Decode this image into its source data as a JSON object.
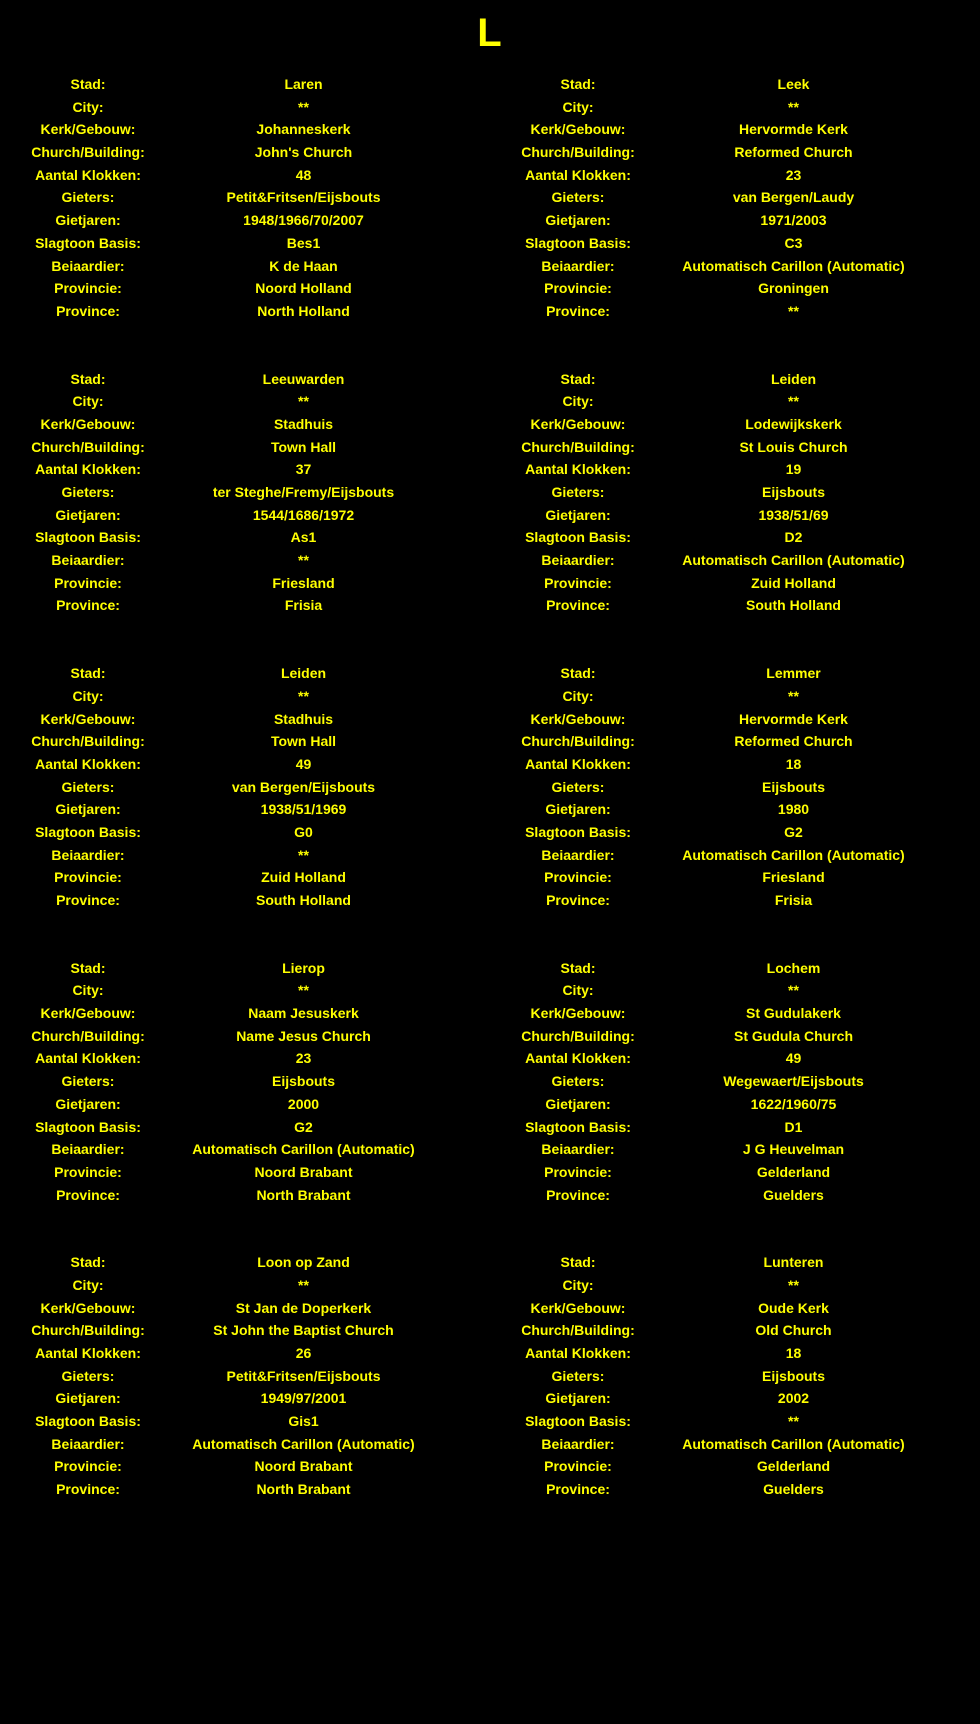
{
  "page": {
    "title": "L",
    "background_color": "#000000",
    "text_color": "#ffff00"
  },
  "field_labels": {
    "stad": "Stad:",
    "city": "City:",
    "kerk_gebouw": "Kerk/Gebouw:",
    "church_building": "Church/Building:",
    "aantal_klokken": "Aantal Klokken:",
    "gieters": "Gieters:",
    "gietjaren": "Gietjaren:",
    "slagtoon_basis": "Slagtoon Basis:",
    "beiaardier": "Beiaardier:",
    "provincie": "Provincie:",
    "province": "Province:"
  },
  "field_order": [
    "stad",
    "city",
    "kerk_gebouw",
    "church_building",
    "aantal_klokken",
    "gieters",
    "gietjaren",
    "slagtoon_basis",
    "beiaardier",
    "provincie",
    "province"
  ],
  "entries": [
    {
      "stad": "Laren",
      "city": "**",
      "kerk_gebouw": "Johanneskerk",
      "church_building": "John's Church",
      "aantal_klokken": "48",
      "gieters": "Petit&Fritsen/Eijsbouts",
      "gietjaren": "1948/1966/70/2007",
      "slagtoon_basis": "Bes1",
      "beiaardier": "K de Haan",
      "provincie": "Noord Holland",
      "province": "North Holland"
    },
    {
      "stad": "Leek",
      "city": "**",
      "kerk_gebouw": "Hervormde Kerk",
      "church_building": "Reformed Church",
      "aantal_klokken": "23",
      "gieters": "van Bergen/Laudy",
      "gietjaren": "1971/2003",
      "slagtoon_basis": "C3",
      "beiaardier": "Automatisch Carillon (Automatic)",
      "provincie": "Groningen",
      "province": "**"
    },
    {
      "stad": "Leeuwarden",
      "city": "**",
      "kerk_gebouw": "Stadhuis",
      "church_building": "Town Hall",
      "aantal_klokken": "37",
      "gieters": "ter Steghe/Fremy/Eijsbouts",
      "gietjaren": "1544/1686/1972",
      "slagtoon_basis": "As1",
      "beiaardier": "**",
      "provincie": "Friesland",
      "province": "Frisia"
    },
    {
      "stad": "Leiden",
      "city": "**",
      "kerk_gebouw": "Lodewijkskerk",
      "church_building": "St Louis Church",
      "aantal_klokken": "19",
      "gieters": "Eijsbouts",
      "gietjaren": "1938/51/69",
      "slagtoon_basis": "D2",
      "beiaardier": "Automatisch Carillon (Automatic)",
      "provincie": "Zuid Holland",
      "province": "South Holland"
    },
    {
      "stad": "Leiden",
      "city": "**",
      "kerk_gebouw": "Stadhuis",
      "church_building": "Town Hall",
      "aantal_klokken": "49",
      "gieters": "van Bergen/Eijsbouts",
      "gietjaren": "1938/51/1969",
      "slagtoon_basis": "G0",
      "beiaardier": "**",
      "provincie": "Zuid Holland",
      "province": "South Holland"
    },
    {
      "stad": "Lemmer",
      "city": "**",
      "kerk_gebouw": "Hervormde Kerk",
      "church_building": "Reformed Church",
      "aantal_klokken": "18",
      "gieters": "Eijsbouts",
      "gietjaren": "1980",
      "slagtoon_basis": "G2",
      "beiaardier": "Automatisch Carillon (Automatic)",
      "provincie": "Friesland",
      "province": "Frisia"
    },
    {
      "stad": "Lierop",
      "city": "**",
      "kerk_gebouw": "Naam Jesuskerk",
      "church_building": "Name Jesus Church",
      "aantal_klokken": "23",
      "gieters": "Eijsbouts",
      "gietjaren": "2000",
      "slagtoon_basis": "G2",
      "beiaardier": "Automatisch Carillon (Automatic)",
      "provincie": "Noord Brabant",
      "province": "North Brabant"
    },
    {
      "stad": "Lochem",
      "city": "**",
      "kerk_gebouw": "St Gudulakerk",
      "church_building": "St Gudula Church",
      "aantal_klokken": "49",
      "gieters": "Wegewaert/Eijsbouts",
      "gietjaren": "1622/1960/75",
      "slagtoon_basis": "D1",
      "beiaardier": "J G Heuvelman",
      "provincie": "Gelderland",
      "province": "Guelders"
    },
    {
      "stad": "Loon op Zand",
      "city": "**",
      "kerk_gebouw": "St Jan de Doperkerk",
      "church_building": "St John the Baptist Church",
      "aantal_klokken": "26",
      "gieters": "Petit&Fritsen/Eijsbouts",
      "gietjaren": "1949/97/2001",
      "slagtoon_basis": "Gis1",
      "beiaardier": "Automatisch Carillon (Automatic)",
      "provincie": "Noord Brabant",
      "province": "North Brabant"
    },
    {
      "stad": "Lunteren",
      "city": "**",
      "kerk_gebouw": "Oude Kerk",
      "church_building": "Old Church",
      "aantal_klokken": "18",
      "gieters": "Eijsbouts",
      "gietjaren": "2002",
      "slagtoon_basis": "**",
      "beiaardier": "Automatisch Carillon (Automatic)",
      "provincie": "Gelderland",
      "province": "Guelders"
    }
  ]
}
